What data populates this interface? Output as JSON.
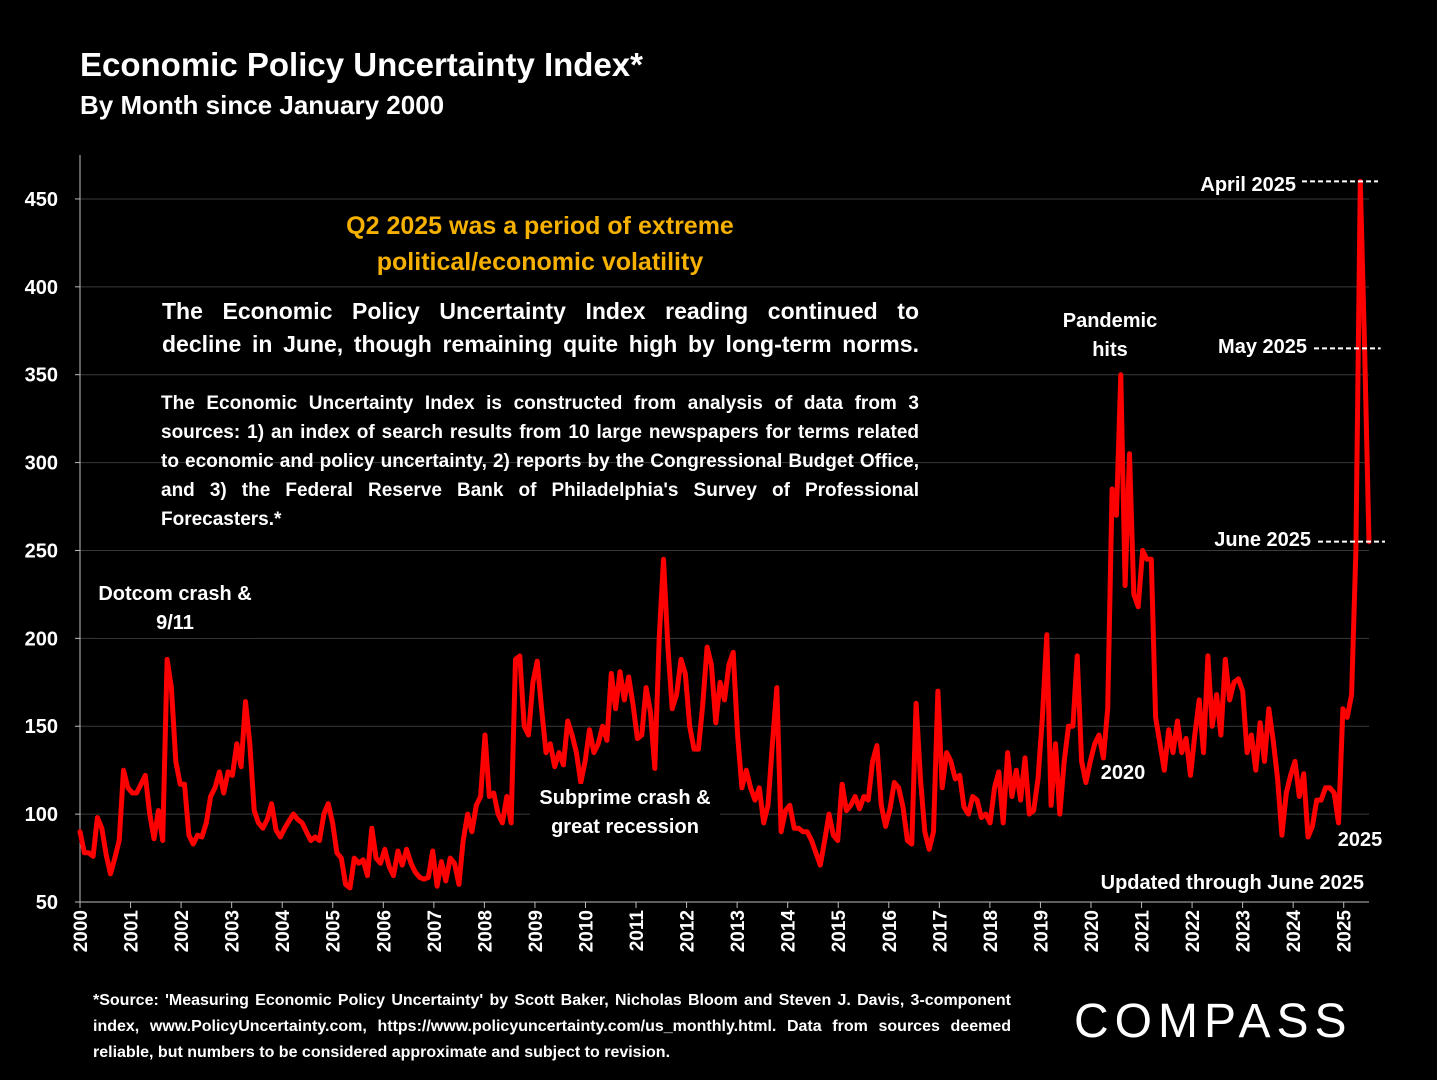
{
  "title": "Economic Policy Uncertainty Index*",
  "subtitle": "By Month since January 2000",
  "headline": "Q2 2025 was a period of extreme political/economic volatility",
  "summary_line1": "The Economic Policy Uncertainty Index reading continued to",
  "summary_line2": "decline in June, though remaining quite high by long-term norms.",
  "description": "The Economic Uncertainty Index is constructed from analysis of data from 3 sources:  1) an index of search results from 10 large newspapers for terms related to economic and policy uncertainty, 2) reports by the Congressional Budget Office, and 3) the Federal Reserve Bank of Philadelphia's Survey of Professional Forecasters.*",
  "annotations": {
    "dotcom": "Dotcom crash & 9/11",
    "subprime": "Subprime crash & great recession",
    "pandemic": "Pandemic hits",
    "label_2020": "2020",
    "label_2025": "2025",
    "updated": "Updated through June 2025",
    "april": "April 2025",
    "may": "May 2025",
    "june": "June 2025"
  },
  "footnote": "*Source: 'Measuring Economic Policy Uncertainty' by Scott Baker, Nicholas Bloom and Steven J. Davis, 3-component index, www.PolicyUncertainty.com, https://www.policyuncertainty.com/us_monthly.html. Data from sources deemed reliable, but numbers to be considered approximate and subject to revision.",
  "logo": "COMPASS",
  "colors": {
    "line": "#ff0000",
    "headline": "#f5b000",
    "background": "#000000",
    "grid": "#3a3a3a"
  },
  "chart_data": {
    "type": "line",
    "title": "Economic Policy Uncertainty Index*",
    "xlabel": "",
    "ylabel": "",
    "ylim": [
      50,
      475
    ],
    "yticks": [
      50,
      100,
      150,
      200,
      250,
      300,
      350,
      400,
      450
    ],
    "xlim": [
      2000,
      2025.5
    ],
    "xticks": [
      "2000",
      "2001",
      "2002",
      "2003",
      "2004",
      "2005",
      "2006",
      "2007",
      "2008",
      "2009",
      "2010",
      "2011",
      "2012",
      "2013",
      "2014",
      "2015",
      "2016",
      "2017",
      "2018",
      "2019",
      "2020",
      "2021",
      "2022",
      "2023",
      "2024",
      "2025"
    ],
    "grid": true,
    "x_start": "2000-01",
    "x_end": "2025-06",
    "frequency": "monthly",
    "series": [
      {
        "values": [
          90,
          78,
          78,
          76,
          98,
          92,
          77,
          66,
          75,
          85,
          125,
          115,
          112,
          112,
          117,
          122,
          100,
          86,
          102,
          85,
          188,
          172,
          130,
          117,
          117,
          88,
          83,
          88,
          87,
          95,
          110,
          115,
          124,
          112,
          124,
          122,
          140,
          127,
          164,
          140,
          102,
          95,
          92,
          97,
          106,
          91,
          87,
          92,
          96,
          100,
          97,
          95,
          90,
          85,
          87,
          85,
          100,
          106,
          95,
          78,
          75,
          60,
          58,
          75,
          72,
          74,
          65,
          92,
          75,
          72,
          80,
          70,
          65,
          79,
          71,
          80,
          72,
          67,
          64,
          63,
          64,
          79,
          59,
          73,
          62,
          75,
          72,
          60,
          85,
          100,
          90,
          105,
          110,
          145,
          110,
          112,
          100,
          95,
          110,
          95,
          188,
          190,
          150,
          145,
          175,
          187,
          160,
          135,
          140,
          127,
          135,
          128,
          153,
          145,
          135,
          118,
          130,
          148,
          135,
          140,
          150,
          142,
          180,
          160,
          181,
          165,
          178,
          162,
          143,
          145,
          172,
          158,
          126,
          200,
          245,
          195,
          160,
          168,
          188,
          180,
          150,
          137,
          137,
          162,
          195,
          185,
          152,
          175,
          165,
          185,
          192,
          145,
          115,
          125,
          115,
          108,
          115,
          95,
          105,
          140,
          172,
          90,
          102,
          105,
          92,
          92,
          90,
          90,
          85,
          78,
          71,
          85,
          100,
          88,
          85,
          117,
          102,
          105,
          110,
          103,
          110,
          108,
          130,
          139,
          105,
          93,
          103,
          118,
          115,
          104,
          85,
          83,
          163,
          120,
          90,
          80,
          90,
          170,
          115,
          135,
          130,
          120,
          122,
          104,
          100,
          110,
          108,
          98,
          100,
          95,
          115,
          124,
          95,
          135,
          110,
          125,
          108,
          132,
          100,
          102,
          120,
          155,
          202,
          105,
          140,
          100,
          130,
          150,
          150,
          190,
          130,
          118,
          130,
          140,
          145,
          132,
          160,
          285,
          270,
          350,
          230,
          305,
          225,
          218,
          250,
          245,
          245,
          155,
          140,
          125,
          148,
          135,
          153,
          135,
          143,
          122,
          145,
          165,
          135,
          190,
          150,
          168,
          145,
          188,
          165,
          175,
          177,
          170,
          135,
          145,
          125,
          152,
          130,
          160,
          142,
          120,
          88,
          112,
          122,
          130,
          110,
          123,
          87,
          93,
          108,
          108,
          115,
          115,
          112,
          95,
          160,
          155,
          168,
          250,
          460,
          365,
          255
        ]
      }
    ]
  }
}
